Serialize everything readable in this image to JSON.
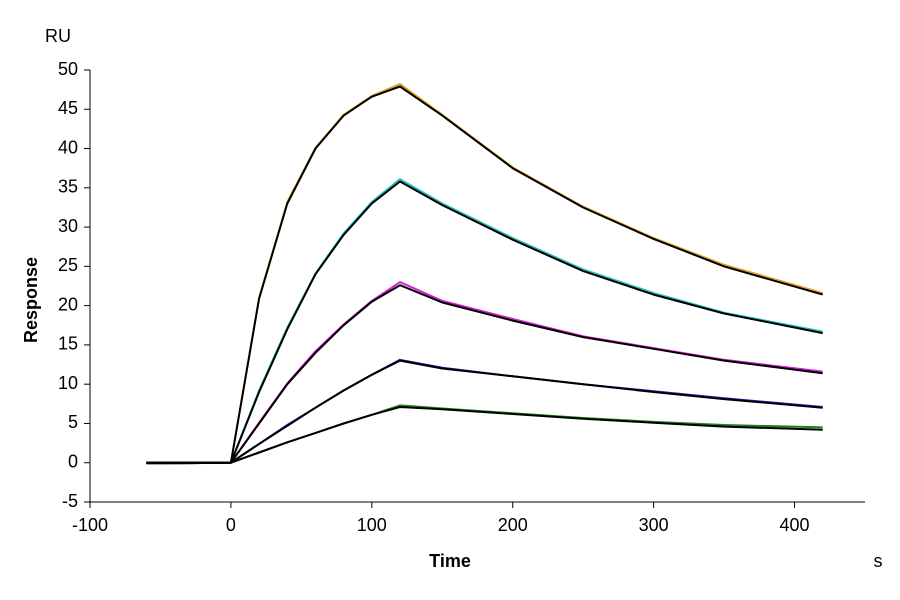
{
  "chart_data": {
    "type": "line",
    "y_unit": "RU",
    "y_label": "Response",
    "x_label": "Time",
    "x_unit": "s",
    "x": [
      -60,
      0,
      20,
      40,
      60,
      80,
      100,
      120,
      150,
      200,
      250,
      300,
      350,
      420
    ],
    "series": [
      {
        "color": "#e0a020",
        "values": [
          -0.1,
          0,
          21,
          33.2,
          40.1,
          44.3,
          46.7,
          48.2,
          44.3,
          37.6,
          32.6,
          28.6,
          25.2,
          21.6
        ]
      },
      {
        "color": "#20c0c0",
        "values": [
          -0.1,
          0,
          9.2,
          17.2,
          24.1,
          29.2,
          33.2,
          36.1,
          33,
          28.6,
          24.6,
          21.6,
          19.1,
          16.7
        ]
      },
      {
        "color": "#d020d0",
        "values": [
          -0.1,
          0,
          5.1,
          10.1,
          14.2,
          17.6,
          20.6,
          23,
          20.6,
          18.3,
          16.1,
          14.6,
          13.1,
          11.6
        ]
      },
      {
        "color": "#2020c0",
        "values": [
          -0.1,
          0,
          2.4,
          4.8,
          7,
          9.2,
          11.2,
          13.1,
          12.1,
          11,
          10,
          9.1,
          8.2,
          7.1
        ]
      },
      {
        "color": "#208020",
        "values": [
          -0.1,
          0,
          1.3,
          2.6,
          3.8,
          5,
          6.1,
          7.3,
          6.9,
          6.3,
          5.7,
          5.2,
          4.8,
          4.5
        ]
      },
      {
        "color": "#000000",
        "values": [
          0,
          0,
          20.9,
          33,
          40,
          44.2,
          46.6,
          47.9,
          44.2,
          37.5,
          32.5,
          28.5,
          25,
          21.4
        ]
      },
      {
        "color": "#000000",
        "values": [
          0,
          0,
          9,
          17,
          24,
          29,
          33,
          35.8,
          32.8,
          28.4,
          24.4,
          21.4,
          19,
          16.5
        ]
      },
      {
        "color": "#000000",
        "values": [
          0,
          0,
          5,
          10,
          14,
          17.5,
          20.5,
          22.6,
          20.4,
          18.1,
          16,
          14.5,
          13,
          11.4
        ]
      },
      {
        "color": "#000000",
        "values": [
          0,
          0,
          2.4,
          4.7,
          7,
          9.2,
          11.2,
          13,
          12,
          11,
          10,
          9,
          8.1,
          7
        ]
      },
      {
        "color": "#000000",
        "values": [
          0,
          0,
          1.3,
          2.6,
          3.8,
          5,
          6.1,
          7.1,
          6.8,
          6.2,
          5.6,
          5.1,
          4.6,
          4.2
        ]
      }
    ],
    "xlim": [
      -100,
      450
    ],
    "ylim": [
      -5,
      50
    ],
    "xticks": [
      -100,
      0,
      100,
      200,
      300,
      400
    ],
    "yticks": [
      -5,
      0,
      5,
      10,
      15,
      20,
      25,
      30,
      35,
      40,
      45,
      50
    ]
  }
}
